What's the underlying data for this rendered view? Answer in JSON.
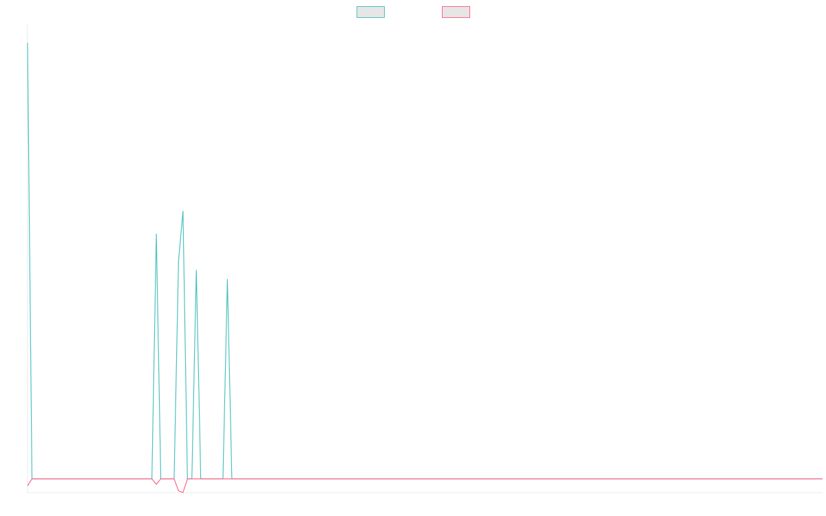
{
  "chart_data": {
    "type": "line",
    "grid": false,
    "legend_position": "top-center",
    "x_count": 180,
    "ylim": [
      -3,
      100
    ],
    "series": [
      {
        "color": "#4bc0c0",
        "legend_fill": "#e6e6e6",
        "points": [
          [
            0,
            96
          ],
          [
            1,
            0
          ],
          [
            28,
            0
          ],
          [
            29,
            54
          ],
          [
            30,
            0
          ],
          [
            33,
            0
          ],
          [
            34,
            48
          ],
          [
            35,
            59
          ],
          [
            36,
            0
          ],
          [
            37,
            0
          ],
          [
            38,
            46
          ],
          [
            39,
            0
          ],
          [
            44,
            0
          ],
          [
            45,
            44
          ],
          [
            46,
            0
          ],
          [
            179,
            0
          ]
        ]
      },
      {
        "color": "#ff6384",
        "legend_fill": "#e6e6e6",
        "points": [
          [
            0,
            -1.5
          ],
          [
            1,
            0
          ],
          [
            28,
            0
          ],
          [
            29,
            -1.2
          ],
          [
            30,
            0
          ],
          [
            33,
            0
          ],
          [
            34,
            -2.6
          ],
          [
            35,
            -3
          ],
          [
            36,
            0
          ],
          [
            179,
            0
          ]
        ]
      }
    ]
  }
}
